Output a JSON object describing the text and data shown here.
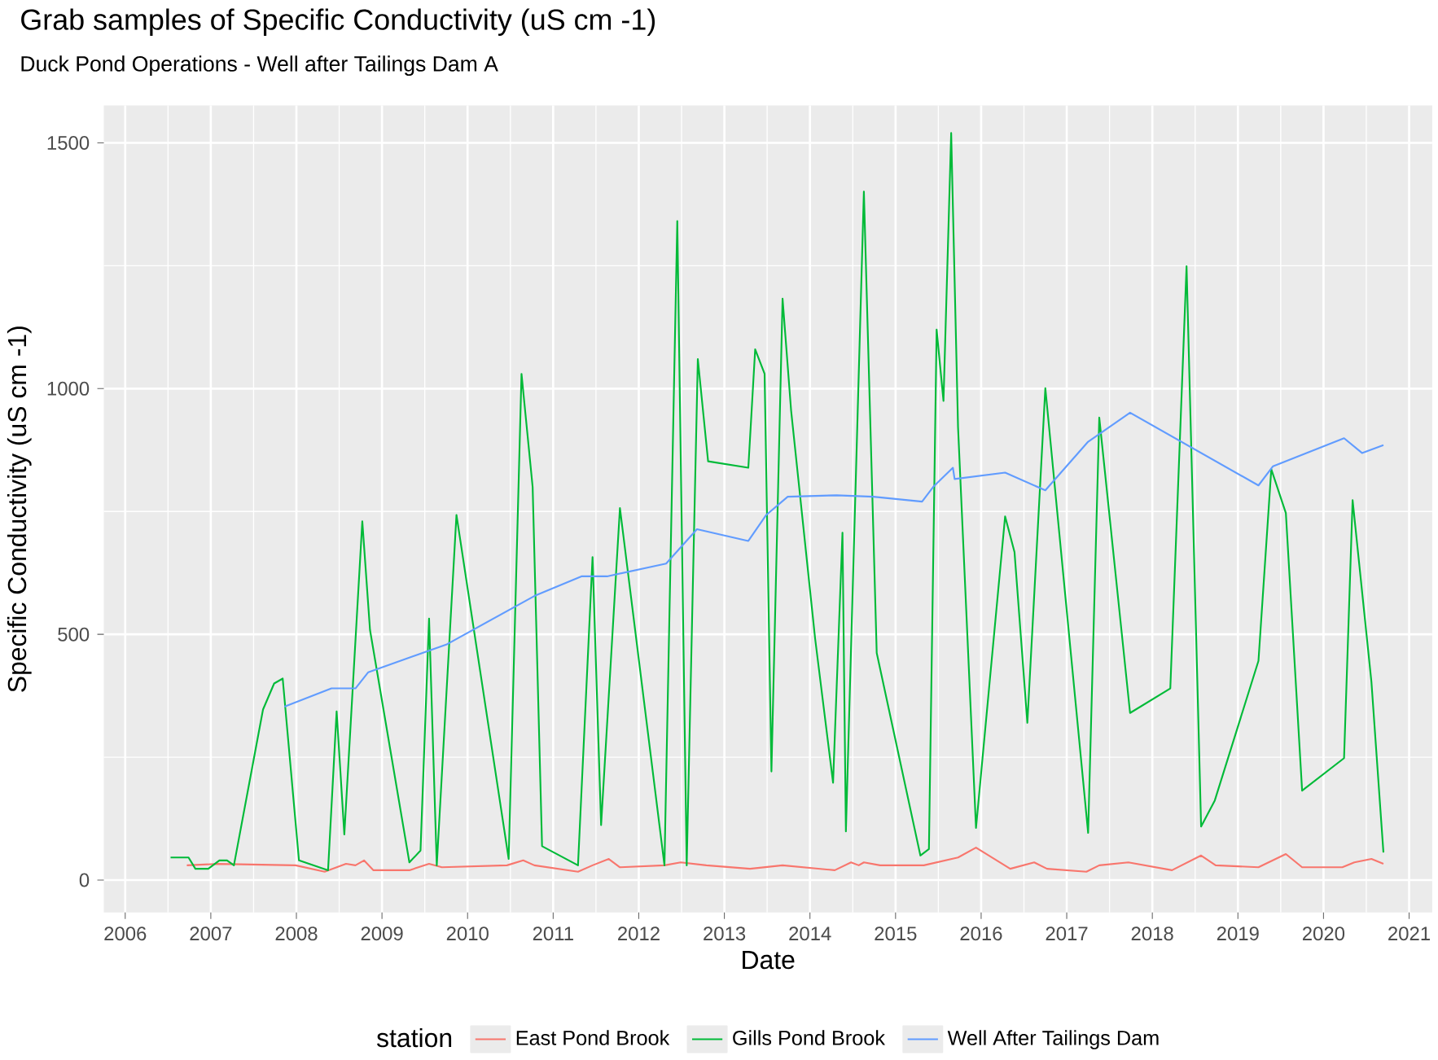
{
  "chart_data": {
    "type": "line",
    "title": "Grab samples of Specific Conductivity (uS cm -1)",
    "subtitle": "Duck Pond Operations - Well after Tailings Dam A",
    "xlabel": "Date",
    "ylabel": "Specific Conductivity (uS cm -1)",
    "legend_title": "station",
    "legend": "bottom",
    "grid": true,
    "xlim": [
      2005.75,
      2021.27
    ],
    "ylim": [
      -66,
      1576
    ],
    "xticks": [
      2006,
      2007,
      2008,
      2009,
      2010,
      2011,
      2012,
      2013,
      2014,
      2015,
      2016,
      2017,
      2018,
      2019,
      2020,
      2021
    ],
    "yticks": [
      0,
      500,
      1000,
      1500
    ],
    "series": [
      {
        "name": "East Pond Brook",
        "color": "#f8766d",
        "x": [
          2006.72,
          2007.08,
          2007.99,
          2008.33,
          2008.58,
          2008.69,
          2008.79,
          2008.9,
          2009.32,
          2009.55,
          2009.7,
          2010.46,
          2010.65,
          2010.78,
          2011.29,
          2011.46,
          2011.65,
          2011.78,
          2012.3,
          2012.49,
          2012.79,
          2013.3,
          2013.68,
          2014.29,
          2014.48,
          2014.57,
          2014.63,
          2014.82,
          2015.33,
          2015.73,
          2015.94,
          2016.34,
          2016.62,
          2016.77,
          2017.23,
          2017.38,
          2017.72,
          2018.23,
          2018.57,
          2018.74,
          2019.24,
          2019.56,
          2019.75,
          2020.22,
          2020.36,
          2020.56,
          2020.7
        ],
        "values": [
          30,
          33,
          30,
          17,
          33,
          30,
          40,
          20,
          20,
          33,
          26,
          30,
          40,
          30,
          17,
          30,
          43,
          26,
          30,
          36,
          30,
          23,
          30,
          20,
          36,
          30,
          36,
          30,
          30,
          46,
          66,
          23,
          36,
          23,
          17,
          30,
          36,
          20,
          50,
          30,
          26,
          53,
          26,
          26,
          36,
          43,
          33
        ]
      },
      {
        "name": "Gills Pond Brook",
        "color": "#00ba38",
        "x": [
          2006.53,
          2006.74,
          2006.82,
          2006.97,
          2007.1,
          2007.19,
          2007.27,
          2007.61,
          2007.74,
          2007.84,
          2008.03,
          2008.37,
          2008.47,
          2008.56,
          2008.77,
          2008.86,
          2009.32,
          2009.45,
          2009.55,
          2009.64,
          2009.87,
          2010.48,
          2010.63,
          2010.76,
          2010.87,
          2011.29,
          2011.46,
          2011.56,
          2011.78,
          2012.3,
          2012.45,
          2012.56,
          2012.69,
          2012.81,
          2013.28,
          2013.36,
          2013.47,
          2013.55,
          2013.68,
          2013.78,
          2014.06,
          2014.27,
          2014.38,
          2014.42,
          2014.63,
          2014.78,
          2015.29,
          2015.39,
          2015.48,
          2015.56,
          2015.65,
          2015.73,
          2015.94,
          2016.28,
          2016.39,
          2016.54,
          2016.75,
          2017.25,
          2017.38,
          2017.74,
          2018.21,
          2018.4,
          2018.57,
          2018.73,
          2019.24,
          2019.39,
          2019.56,
          2019.75,
          2020.24,
          2020.34,
          2020.56,
          2020.7
        ],
        "values": [
          46,
          46,
          23,
          23,
          40,
          40,
          30,
          347,
          400,
          410,
          40,
          20,
          343,
          93,
          730,
          509,
          36,
          60,
          532,
          30,
          743,
          43,
          1030,
          800,
          69,
          30,
          657,
          112,
          757,
          30,
          1341,
          30,
          1060,
          852,
          839,
          1080,
          1030,
          221,
          1183,
          955,
          492,
          198,
          707,
          99,
          1401,
          462,
          50,
          63,
          1120,
          975,
          1520,
          922,
          106,
          740,
          667,
          320,
          1001,
          96,
          941,
          340,
          390,
          1249,
          109,
          162,
          446,
          836,
          747,
          182,
          248,
          773,
          403,
          56
        ]
      },
      {
        "name": "Well After Tailings Dam",
        "color": "#619cff",
        "x": [
          2007.86,
          2008.41,
          2008.69,
          2008.84,
          2009.75,
          2010.78,
          2011.33,
          2011.63,
          2012.32,
          2012.68,
          2013.28,
          2013.49,
          2013.74,
          2014.31,
          2014.74,
          2015.31,
          2015.44,
          2015.67,
          2015.69,
          2016.28,
          2016.75,
          2017.25,
          2017.74,
          2019.24,
          2019.41,
          2020.24,
          2020.45,
          2020.7
        ],
        "values": [
          353,
          390,
          390,
          423,
          479,
          578,
          618,
          618,
          644,
          714,
          690,
          743,
          780,
          783,
          780,
          770,
          800,
          839,
          816,
          829,
          793,
          892,
          951,
          803,
          842,
          899,
          869,
          885
        ]
      }
    ]
  }
}
